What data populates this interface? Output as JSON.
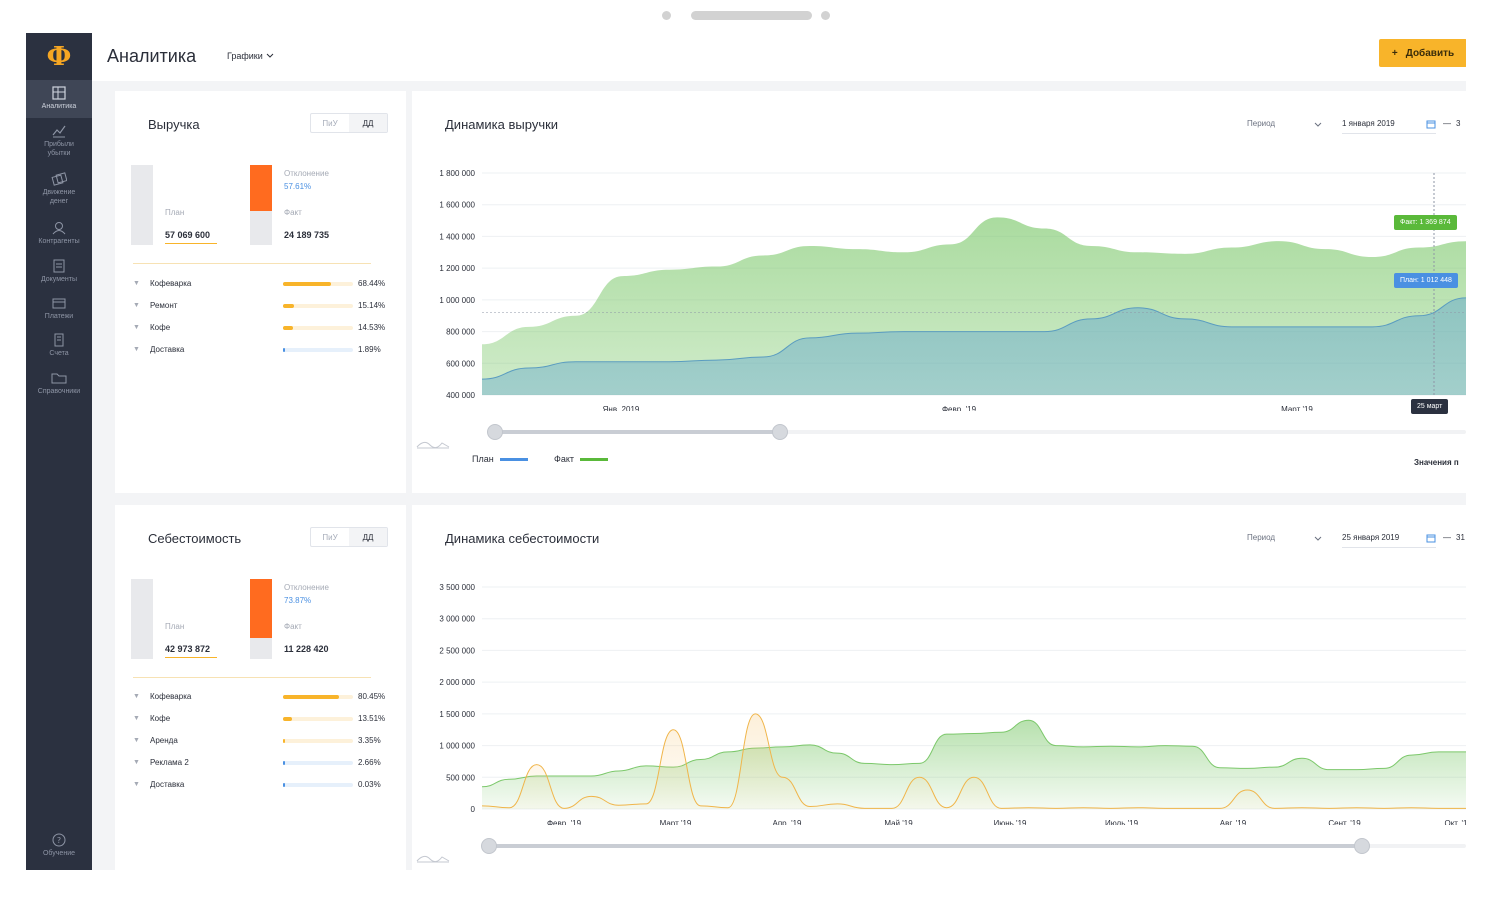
{
  "app": {
    "logo": "Ф",
    "title": "Аналитика",
    "view_dropdown": "Графики",
    "add_button": "Добавить"
  },
  "sidebar": {
    "items": [
      {
        "label": "Аналитика",
        "icon": "analytics-icon"
      },
      {
        "label": "Прибыли убытки",
        "icon": "profit-chart-icon"
      },
      {
        "label": "Движение денег",
        "icon": "money-flow-icon"
      },
      {
        "label": "Контрагенты",
        "icon": "contractors-icon"
      },
      {
        "label": "Документы",
        "icon": "documents-icon"
      },
      {
        "label": "Платежи",
        "icon": "payments-icon"
      },
      {
        "label": "Счета",
        "icon": "invoices-icon"
      },
      {
        "label": "Справочники",
        "icon": "folder-icon"
      }
    ],
    "help": "Обучение"
  },
  "revenue": {
    "title": "Выручка",
    "toggle": [
      "ПиУ",
      "ДД"
    ],
    "plan_label": "План",
    "plan_value": "57 069 600",
    "fact_label": "Факт",
    "fact_value": "24 189 735",
    "deviation_label": "Отклонение",
    "deviation_value": "57.61%",
    "fact_fill": 0.58,
    "items": [
      {
        "name": "Кофеварка",
        "pct": "68.44%",
        "fraction": 0.6844,
        "color": "#f8b42a"
      },
      {
        "name": "Ремонт",
        "pct": "15.14%",
        "fraction": 0.1514,
        "color": "#f8b42a"
      },
      {
        "name": "Кофе",
        "pct": "14.53%",
        "fraction": 0.1453,
        "color": "#f8b42a"
      },
      {
        "name": "Доставка",
        "pct": "1.89%",
        "fraction": 0.0189,
        "color": "#4a90e2"
      }
    ]
  },
  "cost": {
    "title": "Себестоимость",
    "toggle": [
      "ПиУ",
      "ДД"
    ],
    "plan_label": "План",
    "plan_value": "42 973 872",
    "fact_label": "Факт",
    "fact_value": "11 228 420",
    "deviation_label": "Отклонение",
    "deviation_value": "73.87%",
    "fact_fill": 0.74,
    "items": [
      {
        "name": "Кофеварка",
        "pct": "80.45%",
        "fraction": 0.8045,
        "color": "#f8b42a"
      },
      {
        "name": "Кофе",
        "pct": "13.51%",
        "fraction": 0.1351,
        "color": "#f8b42a"
      },
      {
        "name": "Аренда",
        "pct": "3.35%",
        "fraction": 0.0335,
        "color": "#f8b42a"
      },
      {
        "name": "Реклама 2",
        "pct": "2.66%",
        "fraction": 0.0266,
        "color": "#4a90e2"
      },
      {
        "name": "Доставка",
        "pct": "0.03%",
        "fraction": 0.0003,
        "color": "#4a90e2"
      }
    ]
  },
  "revenue_chart": {
    "title": "Динамика выручки",
    "period_label": "Период",
    "date_from": "1 января 2019",
    "date_to": "3 ",
    "legend_plan": "План",
    "legend_fact": "Факт",
    "values_link": "Значения п",
    "tooltip_fact": "Факт: 1 369 874",
    "tooltip_plan": "План: 1 012 448",
    "tooltip_date": "25 март"
  },
  "cost_chart": {
    "title": "Динамика себестоимости",
    "period_label": "Период",
    "date_from": "25 января 2019",
    "date_to": "31"
  },
  "chart_data": [
    {
      "type": "area",
      "title": "Динамика выручки",
      "ylim": [
        400000,
        1800000
      ],
      "y_ticks": [
        "1 800 000",
        "1 600 000",
        "1 400 000",
        "1 200 000",
        "1 000 000",
        "800 000",
        "600 000",
        "400 000"
      ],
      "x_tick_labels": [
        "Янв. 2019",
        "Февр. '19",
        "Март '19"
      ],
      "series": [
        {
          "name": "Факт",
          "color": "#7cc86b",
          "values": [
            720000,
            830000,
            900000,
            1150000,
            1190000,
            1210000,
            1280000,
            1340000,
            1320000,
            1300000,
            1350000,
            1520000,
            1450000,
            1340000,
            1300000,
            1290000,
            1330000,
            1370000,
            1320000,
            1270000,
            1330000,
            1369874
          ]
        },
        {
          "name": "План",
          "color": "#6aaccc",
          "values": [
            500000,
            570000,
            610000,
            610000,
            610000,
            620000,
            640000,
            760000,
            790000,
            800000,
            800000,
            800000,
            800000,
            880000,
            950000,
            880000,
            830000,
            830000,
            830000,
            830000,
            900000,
            1012448
          ]
        }
      ]
    },
    {
      "type": "area",
      "title": "Динамика себестоимости",
      "ylim": [
        0,
        3500000
      ],
      "y_ticks": [
        "3 500 000",
        "3 000 000",
        "2 500 000",
        "2 000 000",
        "1 500 000",
        "1 000 000",
        "500 000",
        "0"
      ],
      "x_tick_labels": [
        "Февр. '19",
        "Март '19",
        "Апр. '19",
        "Май '19",
        "Июнь '19",
        "Июль '19",
        "Авг. '19",
        "Сент. '19",
        "Окт. '1"
      ],
      "series": [
        {
          "name": "План",
          "color": "#7cc86b",
          "values": [
            350000,
            470000,
            520000,
            520000,
            520000,
            600000,
            680000,
            660000,
            780000,
            900000,
            960000,
            980000,
            1010000,
            880000,
            720000,
            700000,
            720000,
            1180000,
            1190000,
            1210000,
            1400000,
            1000000,
            980000,
            990000,
            980000,
            1000000,
            990000,
            650000,
            640000,
            660000,
            800000,
            620000,
            620000,
            640000,
            850000,
            900000,
            900000
          ]
        },
        {
          "name": "Факт",
          "color": "#f5c26b",
          "values": [
            50000,
            20000,
            700000,
            10000,
            200000,
            60000,
            80000,
            1250000,
            50000,
            20000,
            1500000,
            500000,
            40000,
            80000,
            10000,
            10000,
            500000,
            20000,
            500000,
            10000,
            20000,
            10000,
            20000,
            10000,
            20000,
            10000,
            10000,
            10000,
            300000,
            10000,
            20000,
            10000,
            20000,
            10000,
            20000,
            10000,
            10000
          ]
        }
      ]
    }
  ]
}
